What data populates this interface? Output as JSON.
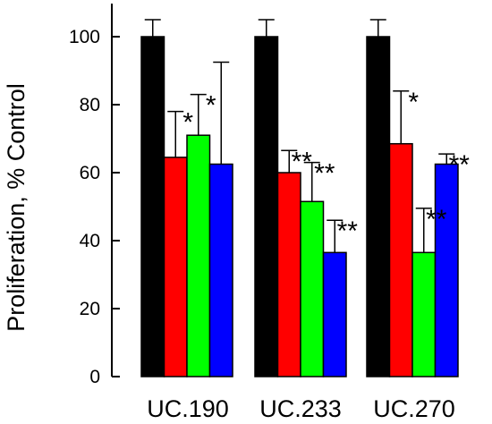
{
  "chart_data": {
    "type": "bar",
    "title": "",
    "xlabel": "",
    "ylabel": "Proliferation, % Control",
    "ylim": [
      0,
      110
    ],
    "yticks": [
      0,
      20,
      40,
      60,
      80,
      100
    ],
    "grid": false,
    "categories": [
      "UC.190",
      "UC.233",
      "UC.270"
    ],
    "series": [
      {
        "color": "#000000",
        "values": [
          100,
          100,
          100
        ],
        "errors": [
          5,
          5,
          5
        ],
        "significance": [
          "",
          "",
          ""
        ]
      },
      {
        "color": "#ff0000",
        "values": [
          64.5,
          60,
          68.5
        ],
        "errors": [
          13.5,
          6.5,
          15.5
        ],
        "significance": [
          "*",
          "**",
          "*"
        ]
      },
      {
        "color": "#00ff00",
        "values": [
          71,
          51.5,
          36.5
        ],
        "errors": [
          12,
          11.5,
          13
        ],
        "significance": [
          "*",
          "**",
          "**"
        ]
      },
      {
        "color": "#0000ff",
        "values": [
          62.5,
          36.5,
          62.5
        ],
        "errors": [
          30,
          9.5,
          3
        ],
        "significance": [
          "",
          "**",
          "**"
        ]
      }
    ]
  }
}
